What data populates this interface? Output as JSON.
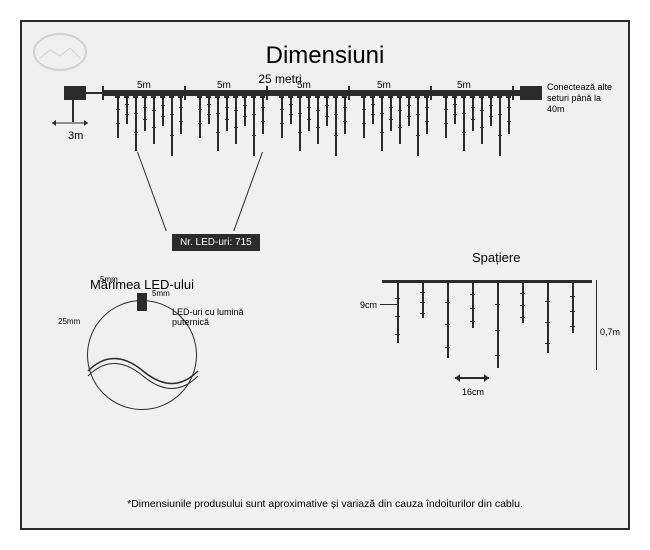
{
  "title": "Dimensiuni",
  "main_length": "25 metri",
  "segment": "5m",
  "lead": "3m",
  "connect": "Conectează alte seturi până la 40m",
  "nr_led": "Nr. LED-uri: 715",
  "led_title": "Mărimea LED-ului",
  "led_note": "LED-uri cu lumină puternică",
  "led_w": "5mm",
  "led_h": "5mm",
  "led_d": "25mm",
  "sp_title": "Spațiere",
  "sp_9": "9cm",
  "sp_16": "16cm",
  "sp_h": "0,7m",
  "footnote": "*Dimensiunile produsului sunt aproximative și variază din cauza îndoiturilor din cablu.",
  "colors": {
    "line": "#2b2b2b",
    "bg": "#f0f0f0"
  },
  "seg_positions": [
    118,
    198,
    278,
    358,
    438
  ],
  "icicle_heights": [
    42,
    28,
    55,
    35,
    48,
    30,
    60,
    38
  ],
  "sp_icicle_heights": [
    60,
    35,
    75,
    45,
    85,
    40,
    70,
    50
  ]
}
